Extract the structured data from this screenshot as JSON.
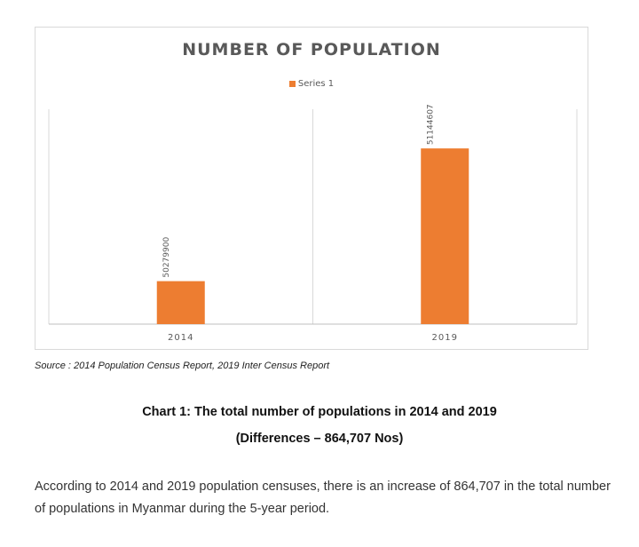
{
  "chart_data": {
    "type": "bar",
    "title": "NUMBER OF POPULATION",
    "categories": [
      "2014",
      "2019"
    ],
    "series": [
      {
        "name": "Series 1",
        "values": [
          50279900,
          51144607
        ]
      }
    ],
    "data_labels": [
      "50279900",
      "51144607"
    ],
    "ylim": [
      50000000,
      51400000
    ],
    "grid": "vertical",
    "legend": "top-center",
    "colors": {
      "bar": "#ED7D31",
      "grid": "#d9d9d9",
      "axis": "#bfbfbf"
    }
  },
  "source": "Source : 2014 Population Census Report, 2019 Inter Census Report",
  "caption": {
    "line1": "Chart 1: The total number of populations in 2014 and 2019",
    "line2": "(Differences – 864,707 Nos)"
  },
  "body": {
    "paragraph": "According to 2014 and 2019 population censuses, there is an increase of 864,707 in the total number of populations in Myanmar during the 5-year period."
  }
}
